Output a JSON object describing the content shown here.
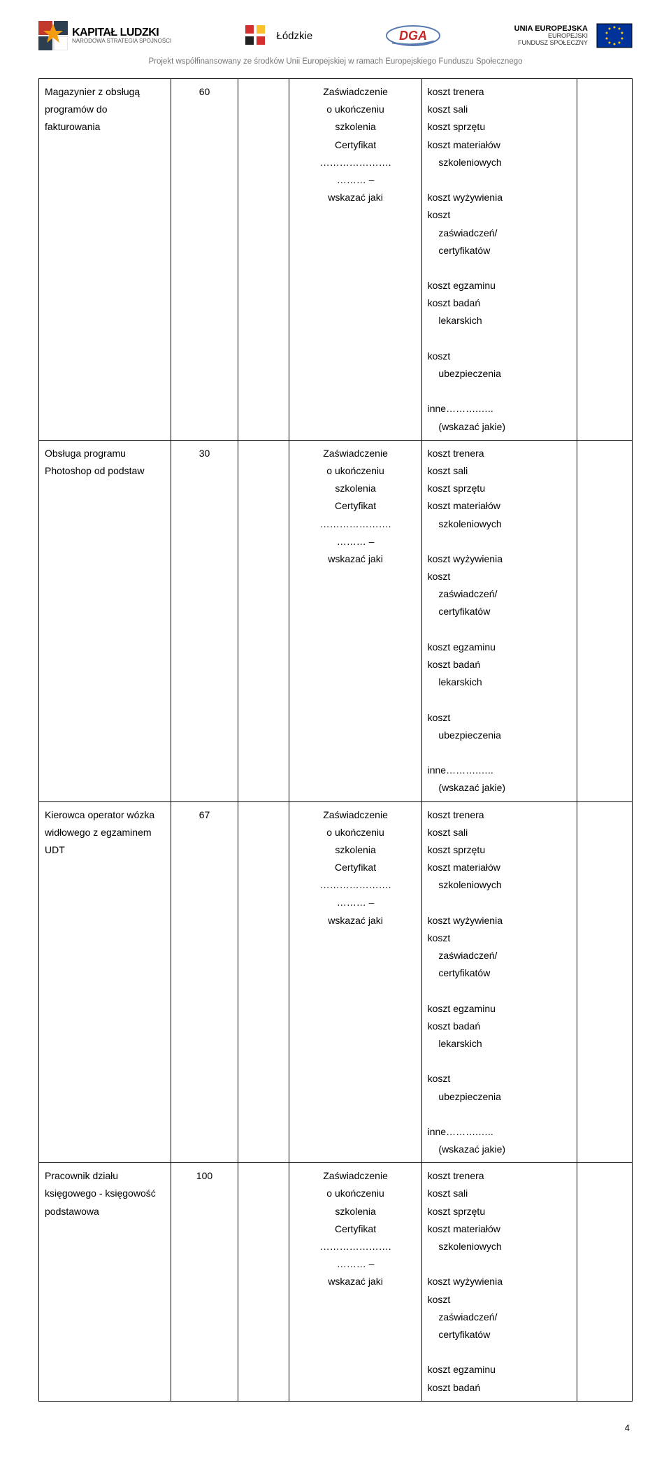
{
  "header": {
    "kapital_main": "KAPITAŁ LUDZKI",
    "kapital_sub": "NARODOWA STRATEGIA SPÓJNOŚCI",
    "lodzkie": "Łódzkie",
    "dga": "DGA",
    "eu_main": "UNIA EUROPEJSKA",
    "eu_sub1": "EUROPEJSKI",
    "eu_sub2": "FUNDUSZ SPOŁECZNY"
  },
  "subheader": "Projekt współfinansowany ze środków Unii Europejskiej w ramach Europejskiego Funduszu Społecznego",
  "cert_block": {
    "l1": "Zaświadczenie",
    "l2": "o ukończeniu",
    "l3": "szkolenia",
    "l4": "Certyfikat",
    "l5": "………………….",
    "l6": "……… –",
    "l7": "wskazać jaki"
  },
  "cost_block_full": "koszt trenera\nkoszt sali\nkoszt sprzętu\nkoszt materiałów\n  szkoleniowych\nkoszt wyżywienia\nkoszt\n  zaświadczeń/\n  certyfikatów\nkoszt egzaminu\nkoszt badań\n  lekarskich\nkoszt\n  ubezpieczenia\ninne……….…..\n  (wskazać jakie)",
  "cost_block_short": "koszt trenera\nkoszt sali\nkoszt sprzętu\nkoszt materiałów\n  szkoleniowych\nkoszt wyżywienia\nkoszt\n  zaświadczeń/\n  certyfikatów\nkoszt egzaminu\nkoszt badań",
  "rows": [
    {
      "name": "Magazynier z obsługą programów do fakturowania",
      "num": "60",
      "cost": "full"
    },
    {
      "name": "Obsługa programu Photoshop od podstaw",
      "num": "30",
      "cost": "full"
    },
    {
      "name": "Kierowca operator wózka widłowego z egzaminem UDT",
      "num": "67",
      "cost": "full"
    },
    {
      "name": "Pracownik działu księgowego - księgowość podstawowa",
      "num": "100",
      "cost": "short"
    }
  ],
  "page_number": "4",
  "colors": {
    "text": "#000000",
    "subheader": "#777777",
    "kl_star_orange": "#f39c12",
    "kl_square_red": "#c0392b",
    "kl_square_blue": "#2c3e50",
    "lodz_red": "#d32f2f",
    "lodz_yellow": "#fbc02d",
    "lodz_black": "#212121",
    "dga_blue": "#5a7bb0",
    "dga_red": "#c62828",
    "eu_blue": "#003399",
    "eu_gold": "#ffcc00"
  }
}
